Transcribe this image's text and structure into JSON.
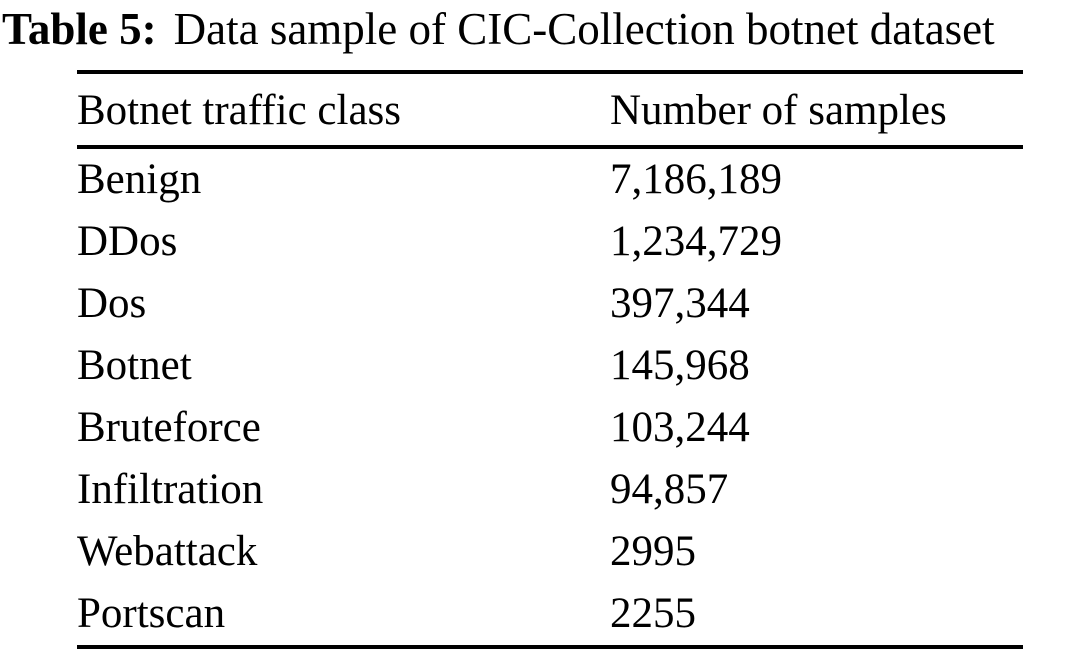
{
  "caption": {
    "label": "Table 5:",
    "text": "Data sample of CIC-Collection botnet dataset"
  },
  "table": {
    "headers": [
      "Botnet traffic class",
      "Number of samples"
    ],
    "rows": [
      {
        "class": "Benign",
        "samples": "7,186,189"
      },
      {
        "class": "DDos",
        "samples": "1,234,729"
      },
      {
        "class": "Dos",
        "samples": "397,344"
      },
      {
        "class": "Botnet",
        "samples": "145,968"
      },
      {
        "class": "Bruteforce",
        "samples": "103,244"
      },
      {
        "class": "Infiltration",
        "samples": "94,857"
      },
      {
        "class": "Webattack",
        "samples": "2995"
      },
      {
        "class": "Portscan",
        "samples": "2255"
      }
    ]
  },
  "colors": {
    "text": "#000000",
    "background": "#ffffff",
    "rule": "#000000"
  }
}
